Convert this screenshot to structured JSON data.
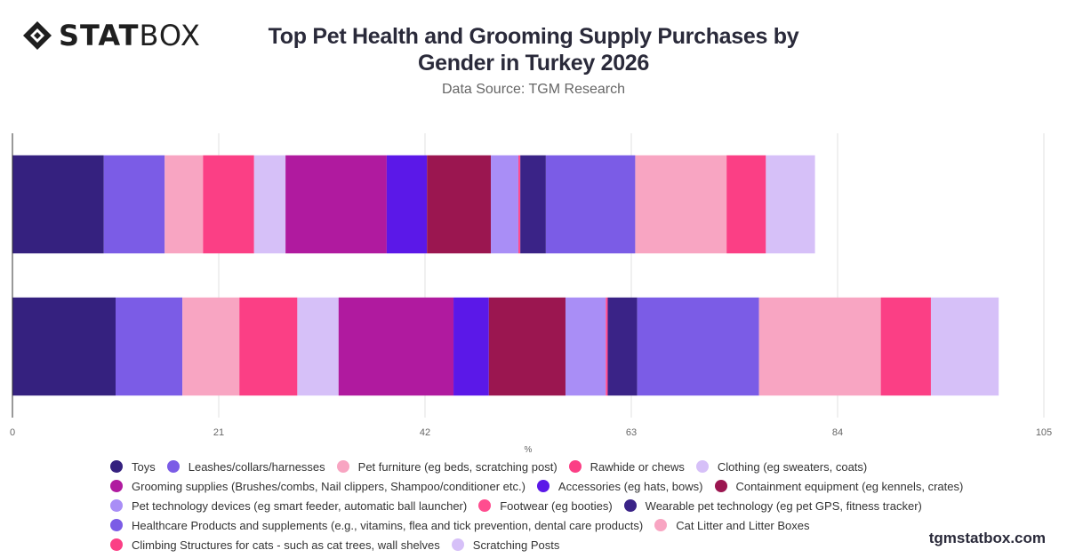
{
  "brand": {
    "logo_main": "STAT",
    "logo_light": "BOX",
    "footer": "tgmstatbox.com"
  },
  "chart_data": {
    "type": "bar",
    "orientation": "horizontal",
    "stacked": true,
    "title": "Top Pet Health and Grooming Supply Purchases by Gender in Turkey 2026",
    "subtitle": "Data Source: TGM Research",
    "xlabel": "%",
    "xlim": [
      0,
      105
    ],
    "xticks": [
      0,
      21,
      42,
      63,
      84,
      105
    ],
    "grid": true,
    "legend_position": "bottom",
    "categories": [
      "",
      ""
    ],
    "series": [
      {
        "name": "Toys",
        "color": "#35217f",
        "values": [
          9.3,
          10.5
        ]
      },
      {
        "name": "Leashes/collars/harnesses",
        "color": "#7b5ce6",
        "values": [
          6.2,
          6.8
        ]
      },
      {
        "name": "Pet furniture (eg beds, scratching post)",
        "color": "#f8a5c2",
        "values": [
          3.9,
          5.8
        ]
      },
      {
        "name": "Rawhide or chews",
        "color": "#fb3f85",
        "values": [
          5.2,
          5.9
        ]
      },
      {
        "name": "Clothing (eg sweaters, coats)",
        "color": "#d6c0f8",
        "values": [
          3.2,
          4.2
        ]
      },
      {
        "name": "Grooming supplies (Brushes/combs, Nail clippers, Shampoo/conditioner etc.)",
        "color": "#b01a9f",
        "values": [
          10.3,
          11.7
        ]
      },
      {
        "name": "Accessories (eg hats, bows)",
        "color": "#5b18e8",
        "values": [
          4.1,
          3.6
        ]
      },
      {
        "name": "Containment equipment (eg kennels, crates)",
        "color": "#9b1650",
        "values": [
          6.5,
          7.8
        ]
      },
      {
        "name": "Pet technology devices (eg smart feeder, automatic ball launcher)",
        "color": "#a98ef6",
        "values": [
          2.8,
          4.1
        ]
      },
      {
        "name": "Footwear (eg booties)",
        "color": "#ff4d8f",
        "values": [
          0.2,
          0.2
        ]
      },
      {
        "name": "Wearable pet technology (eg pet GPS, fitness tracker)",
        "color": "#3a2387",
        "values": [
          2.6,
          3.0
        ]
      },
      {
        "name": "Healthcare Products and supplements (e.g., vitamins, flea and tick prevention, dental care products)",
        "color": "#7b5ce6",
        "values": [
          9.1,
          12.4
        ]
      },
      {
        "name": "Cat Litter and Litter Boxes",
        "color": "#f8a5c2",
        "values": [
          9.3,
          12.4
        ]
      },
      {
        "name": "Climbing Structures for cats - such as cat trees, wall shelves",
        "color": "#fb3f85",
        "values": [
          4.0,
          5.1
        ]
      },
      {
        "name": "Scratching Posts",
        "color": "#d6c0f8",
        "values": [
          5.0,
          6.9
        ]
      }
    ]
  },
  "legend_rows": [
    [
      0,
      1,
      2,
      3,
      4
    ],
    [
      5,
      6,
      7
    ],
    [
      8,
      9,
      10
    ],
    [
      11,
      12
    ],
    [
      13,
      14
    ]
  ]
}
